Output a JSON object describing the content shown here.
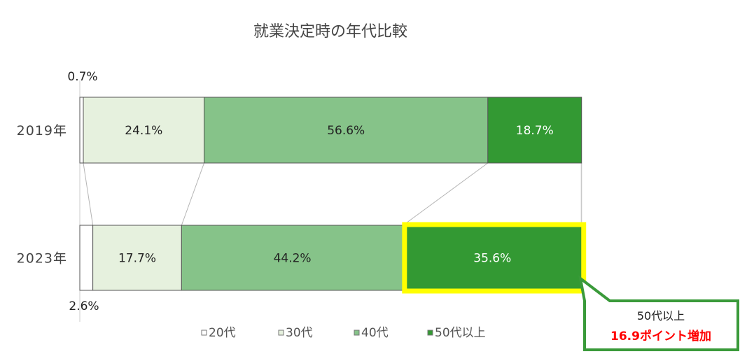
{
  "chart_data": {
    "type": "bar",
    "orientation": "horizontal",
    "stacked": "percent",
    "title": "就業決定時の年代比較",
    "categories": [
      "2019年",
      "2023年"
    ],
    "series": [
      {
        "name": "20代",
        "values": [
          0.7,
          2.6
        ],
        "color": "#ffffff"
      },
      {
        "name": "30代",
        "values": [
          24.1,
          17.7
        ],
        "color": "#e6f1de"
      },
      {
        "name": "40代",
        "values": [
          56.6,
          44.2
        ],
        "color": "#86c389"
      },
      {
        "name": "50代以上",
        "values": [
          18.7,
          35.6
        ],
        "color": "#339933"
      }
    ],
    "segment_labels": [
      [
        "0.7%",
        "24.1%",
        "56.6%",
        "18.7%"
      ],
      [
        "2.6%",
        "17.7%",
        "44.2%",
        "35.6%"
      ]
    ],
    "legend_position": "bottom",
    "highlight": {
      "category": "2023年",
      "series": "50代以上",
      "color": "#ffff00"
    }
  },
  "callout": {
    "line1": "50代以上",
    "line2": "16.9ポイント増加",
    "border_color": "#3a9a3a",
    "accent_color": "#ff0000"
  }
}
